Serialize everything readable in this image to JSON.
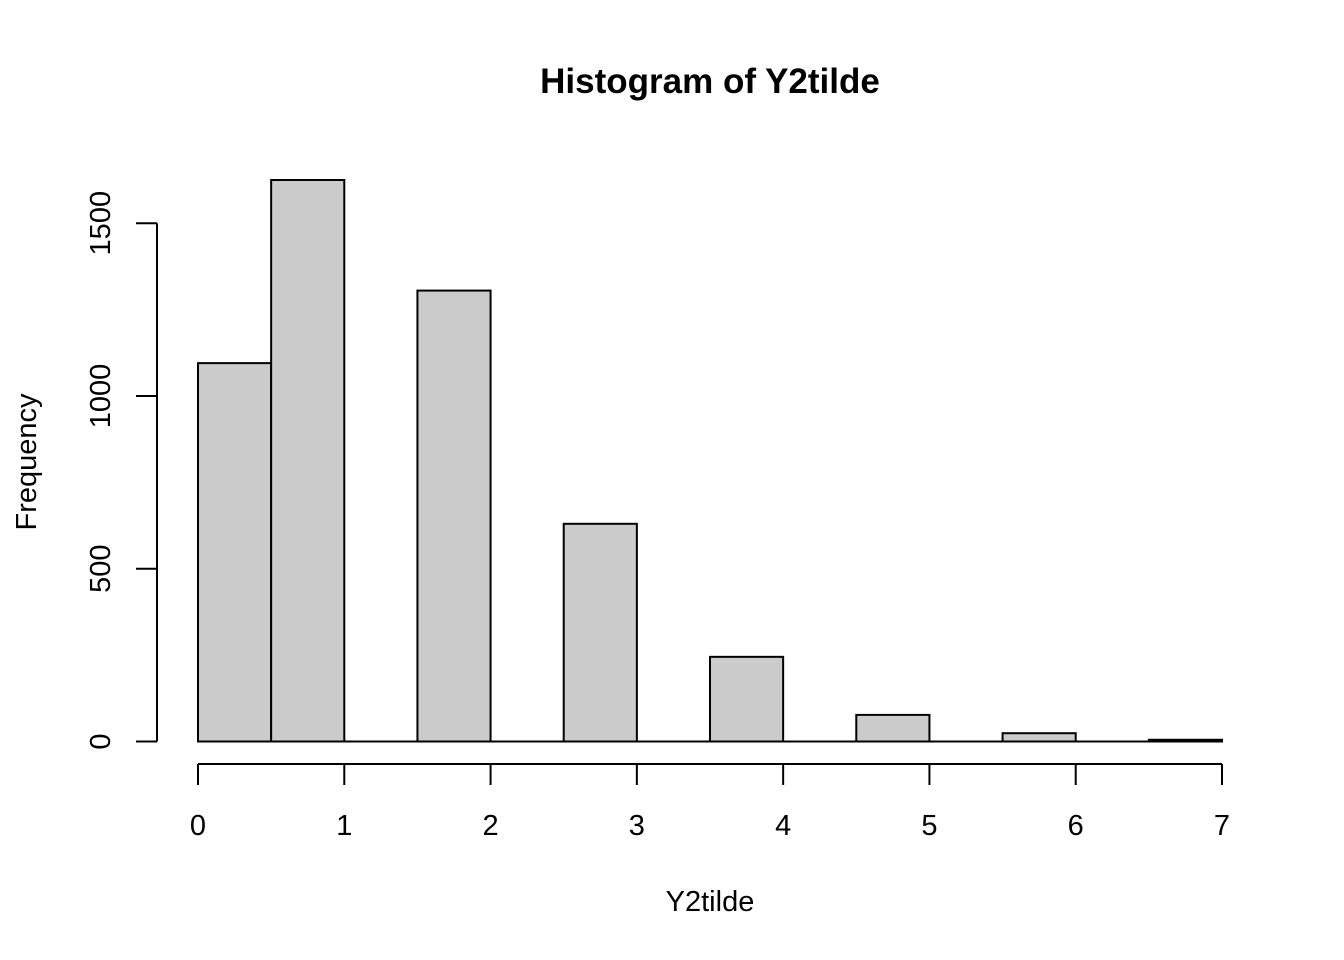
{
  "chart_data": {
    "type": "bar",
    "title": "Histogram of Y2tilde",
    "xlabel": "Y2tilde",
    "ylabel": "Frequency",
    "bins": [
      {
        "start": 0.0,
        "end": 0.5,
        "count": 1095
      },
      {
        "start": 0.5,
        "end": 1.0,
        "count": 1625
      },
      {
        "start": 1.0,
        "end": 1.5,
        "count": 0
      },
      {
        "start": 1.5,
        "end": 2.0,
        "count": 1305
      },
      {
        "start": 2.0,
        "end": 2.5,
        "count": 0
      },
      {
        "start": 2.5,
        "end": 3.0,
        "count": 630
      },
      {
        "start": 3.0,
        "end": 3.5,
        "count": 0
      },
      {
        "start": 3.5,
        "end": 4.0,
        "count": 245
      },
      {
        "start": 4.0,
        "end": 4.5,
        "count": 0
      },
      {
        "start": 4.5,
        "end": 5.0,
        "count": 77
      },
      {
        "start": 5.0,
        "end": 5.5,
        "count": 0
      },
      {
        "start": 5.5,
        "end": 6.0,
        "count": 24
      },
      {
        "start": 6.0,
        "end": 6.5,
        "count": 0
      },
      {
        "start": 6.5,
        "end": 7.0,
        "count": 5
      }
    ],
    "x_ticks": [
      0,
      1,
      2,
      3,
      4,
      5,
      6,
      7
    ],
    "y_ticks": [
      0,
      500,
      1000,
      1500
    ],
    "xlim": [
      0,
      7
    ],
    "ylim": [
      0,
      1625
    ],
    "bar_fill": "#cbcbcb",
    "bar_stroke": "#000000",
    "grid": false,
    "legend": "none"
  }
}
